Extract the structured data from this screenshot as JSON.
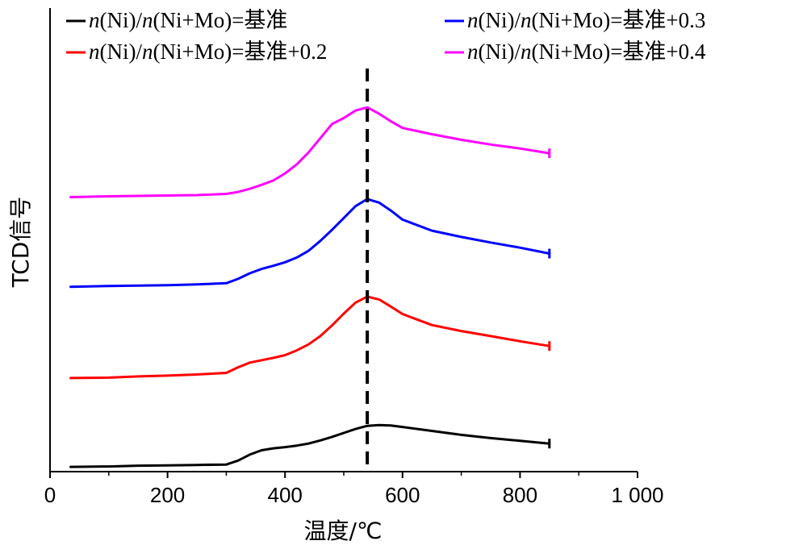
{
  "chart_data": {
    "type": "line",
    "title": "",
    "xlabel": "温度/℃",
    "ylabel": "TCD信号",
    "xlim": [
      0,
      1000
    ],
    "xticks": [
      0,
      200,
      400,
      600,
      800,
      1000
    ],
    "xtick_labels": [
      "0",
      "200",
      "400",
      "600",
      "800",
      "1 000"
    ],
    "ylim": [
      0,
      1
    ],
    "yticks_shown": false,
    "grid": false,
    "legend_position": "top",
    "reference_line": {
      "x": 540,
      "style": "dashed",
      "color": "#000000"
    },
    "series": [
      {
        "name": "n(Ni)/n(Ni+Mo)=基准",
        "label_parts": [
          "n",
          "(Ni)/",
          "n",
          "(Ni+Mo)=基准"
        ],
        "color": "#000000",
        "x": [
          35,
          100,
          150,
          200,
          250,
          300,
          320,
          340,
          360,
          380,
          400,
          420,
          440,
          460,
          480,
          500,
          520,
          540,
          560,
          580,
          600,
          650,
          700,
          750,
          800,
          850
        ],
        "y": [
          0.012,
          0.013,
          0.015,
          0.016,
          0.017,
          0.018,
          0.028,
          0.043,
          0.054,
          0.059,
          0.062,
          0.066,
          0.071,
          0.079,
          0.088,
          0.098,
          0.108,
          0.116,
          0.118,
          0.117,
          0.113,
          0.103,
          0.093,
          0.085,
          0.078,
          0.071
        ]
      },
      {
        "name": "n(Ni)/n(Ni+Mo)=基准+0.2",
        "label_parts": [
          "n",
          "(Ni)/",
          "n",
          "(Ni+Mo)=基准+0.2"
        ],
        "color": "#ff0000",
        "x": [
          35,
          100,
          150,
          200,
          250,
          300,
          320,
          340,
          360,
          380,
          400,
          420,
          440,
          460,
          480,
          500,
          520,
          540,
          560,
          580,
          600,
          650,
          700,
          750,
          800,
          850
        ],
        "y": [
          0.237,
          0.238,
          0.241,
          0.243,
          0.246,
          0.25,
          0.264,
          0.276,
          0.282,
          0.288,
          0.295,
          0.307,
          0.322,
          0.343,
          0.37,
          0.4,
          0.428,
          0.443,
          0.436,
          0.418,
          0.399,
          0.371,
          0.356,
          0.343,
          0.33,
          0.318
        ]
      },
      {
        "name": "n(Ni)/n(Ni+Mo)=基准+0.3",
        "label_parts": [
          "n",
          "(Ni)/",
          "n",
          "(Ni+Mo)=基准+0.3"
        ],
        "color": "#0000ff",
        "x": [
          35,
          100,
          150,
          200,
          250,
          300,
          320,
          340,
          360,
          380,
          400,
          420,
          440,
          460,
          480,
          500,
          520,
          540,
          560,
          580,
          600,
          650,
          700,
          750,
          800,
          850
        ],
        "y": [
          0.468,
          0.47,
          0.471,
          0.472,
          0.474,
          0.477,
          0.488,
          0.502,
          0.513,
          0.521,
          0.53,
          0.542,
          0.559,
          0.584,
          0.612,
          0.642,
          0.672,
          0.69,
          0.681,
          0.661,
          0.638,
          0.61,
          0.594,
          0.58,
          0.567,
          0.552
        ]
      },
      {
        "name": "n(Ni)/n(Ni+Mo)=基准+0.4",
        "label_parts": [
          "n",
          "(Ni)/",
          "n",
          "(Ni+Mo)=基准+0.4"
        ],
        "color": "#ff00ff",
        "x": [
          35,
          100,
          150,
          200,
          250,
          300,
          320,
          340,
          360,
          380,
          400,
          420,
          440,
          460,
          480,
          500,
          520,
          540,
          560,
          580,
          600,
          650,
          700,
          750,
          800,
          850
        ],
        "y": [
          0.695,
          0.697,
          0.698,
          0.699,
          0.7,
          0.703,
          0.708,
          0.716,
          0.726,
          0.737,
          0.755,
          0.778,
          0.808,
          0.844,
          0.88,
          0.895,
          0.914,
          0.922,
          0.906,
          0.887,
          0.87,
          0.854,
          0.84,
          0.828,
          0.818,
          0.806
        ]
      }
    ]
  }
}
